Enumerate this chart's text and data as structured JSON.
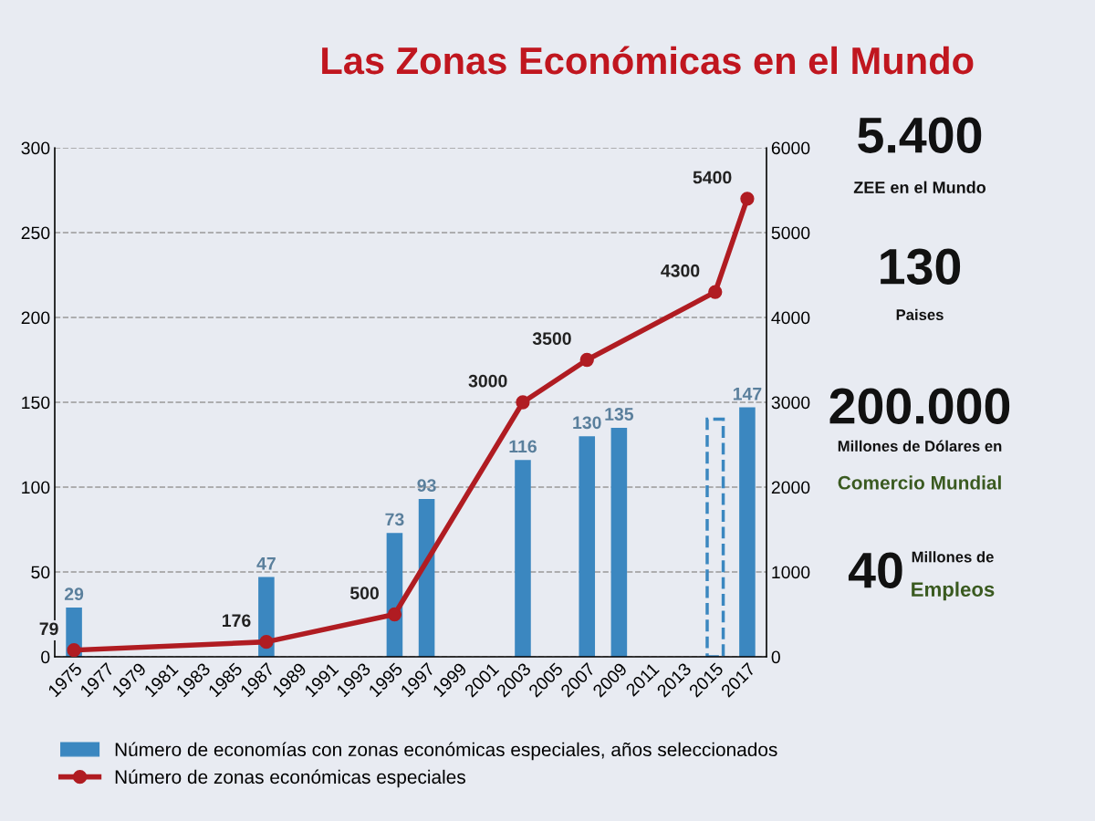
{
  "chart_data": {
    "type": "bar",
    "title": "Las Zonas Económicas en el Mundo",
    "categories": [
      "1975",
      "1977",
      "1979",
      "1981",
      "1983",
      "1985",
      "1987",
      "1989",
      "1991",
      "1993",
      "1995",
      "1997",
      "1999",
      "2001",
      "2003",
      "2005",
      "2007",
      "2009",
      "2011",
      "2013",
      "2015",
      "2017"
    ],
    "series": [
      {
        "name": "Número de economías con zonas económicas especiales, años seleccionados",
        "color": "#3b87c0",
        "values": [
          29,
          null,
          null,
          null,
          null,
          null,
          47,
          null,
          null,
          null,
          73,
          93,
          null,
          null,
          116,
          null,
          130,
          135,
          null,
          null,
          null,
          147
        ],
        "value_labels": [
          "29",
          null,
          null,
          null,
          null,
          null,
          "47",
          null,
          null,
          null,
          "73",
          "93",
          null,
          null,
          "116",
          null,
          "130",
          "135",
          null,
          null,
          null,
          "147"
        ]
      },
      {
        "color": "#3b87c0",
        "line_style": "dashed",
        "values": [
          null,
          null,
          null,
          null,
          null,
          null,
          null,
          null,
          null,
          null,
          null,
          null,
          null,
          null,
          null,
          null,
          null,
          null,
          null,
          null,
          140,
          null
        ]
      },
      {
        "name": "Número de zonas económicas especiales",
        "type": "line",
        "axis": "y2",
        "color": "#b01c22",
        "marker": "circle",
        "values": [
          79,
          null,
          null,
          null,
          null,
          null,
          176,
          null,
          null,
          null,
          500,
          null,
          null,
          null,
          3000,
          null,
          3500,
          null,
          null,
          null,
          4300,
          5400
        ],
        "value_labels": [
          "79",
          null,
          null,
          null,
          null,
          null,
          "176",
          null,
          null,
          null,
          "500",
          null,
          null,
          null,
          "3000",
          null,
          "3500",
          null,
          null,
          null,
          "4300",
          "5400"
        ]
      }
    ],
    "ylim": [
      0,
      300
    ],
    "yticks": [
      0,
      50,
      100,
      150,
      200,
      250,
      300
    ],
    "y2lim": [
      0,
      6000
    ],
    "y2ticks": [
      0,
      1000,
      2000,
      3000,
      4000,
      5000,
      6000
    ],
    "grid": "y",
    "legend": "bottom",
    "annotations": [
      "5.400",
      "ZEE en el Mundo",
      "130",
      "Paises",
      "200.000",
      "Millones de Dólares en",
      "Comercio Mundial",
      "40",
      "Millones de",
      "Empleos"
    ]
  }
}
